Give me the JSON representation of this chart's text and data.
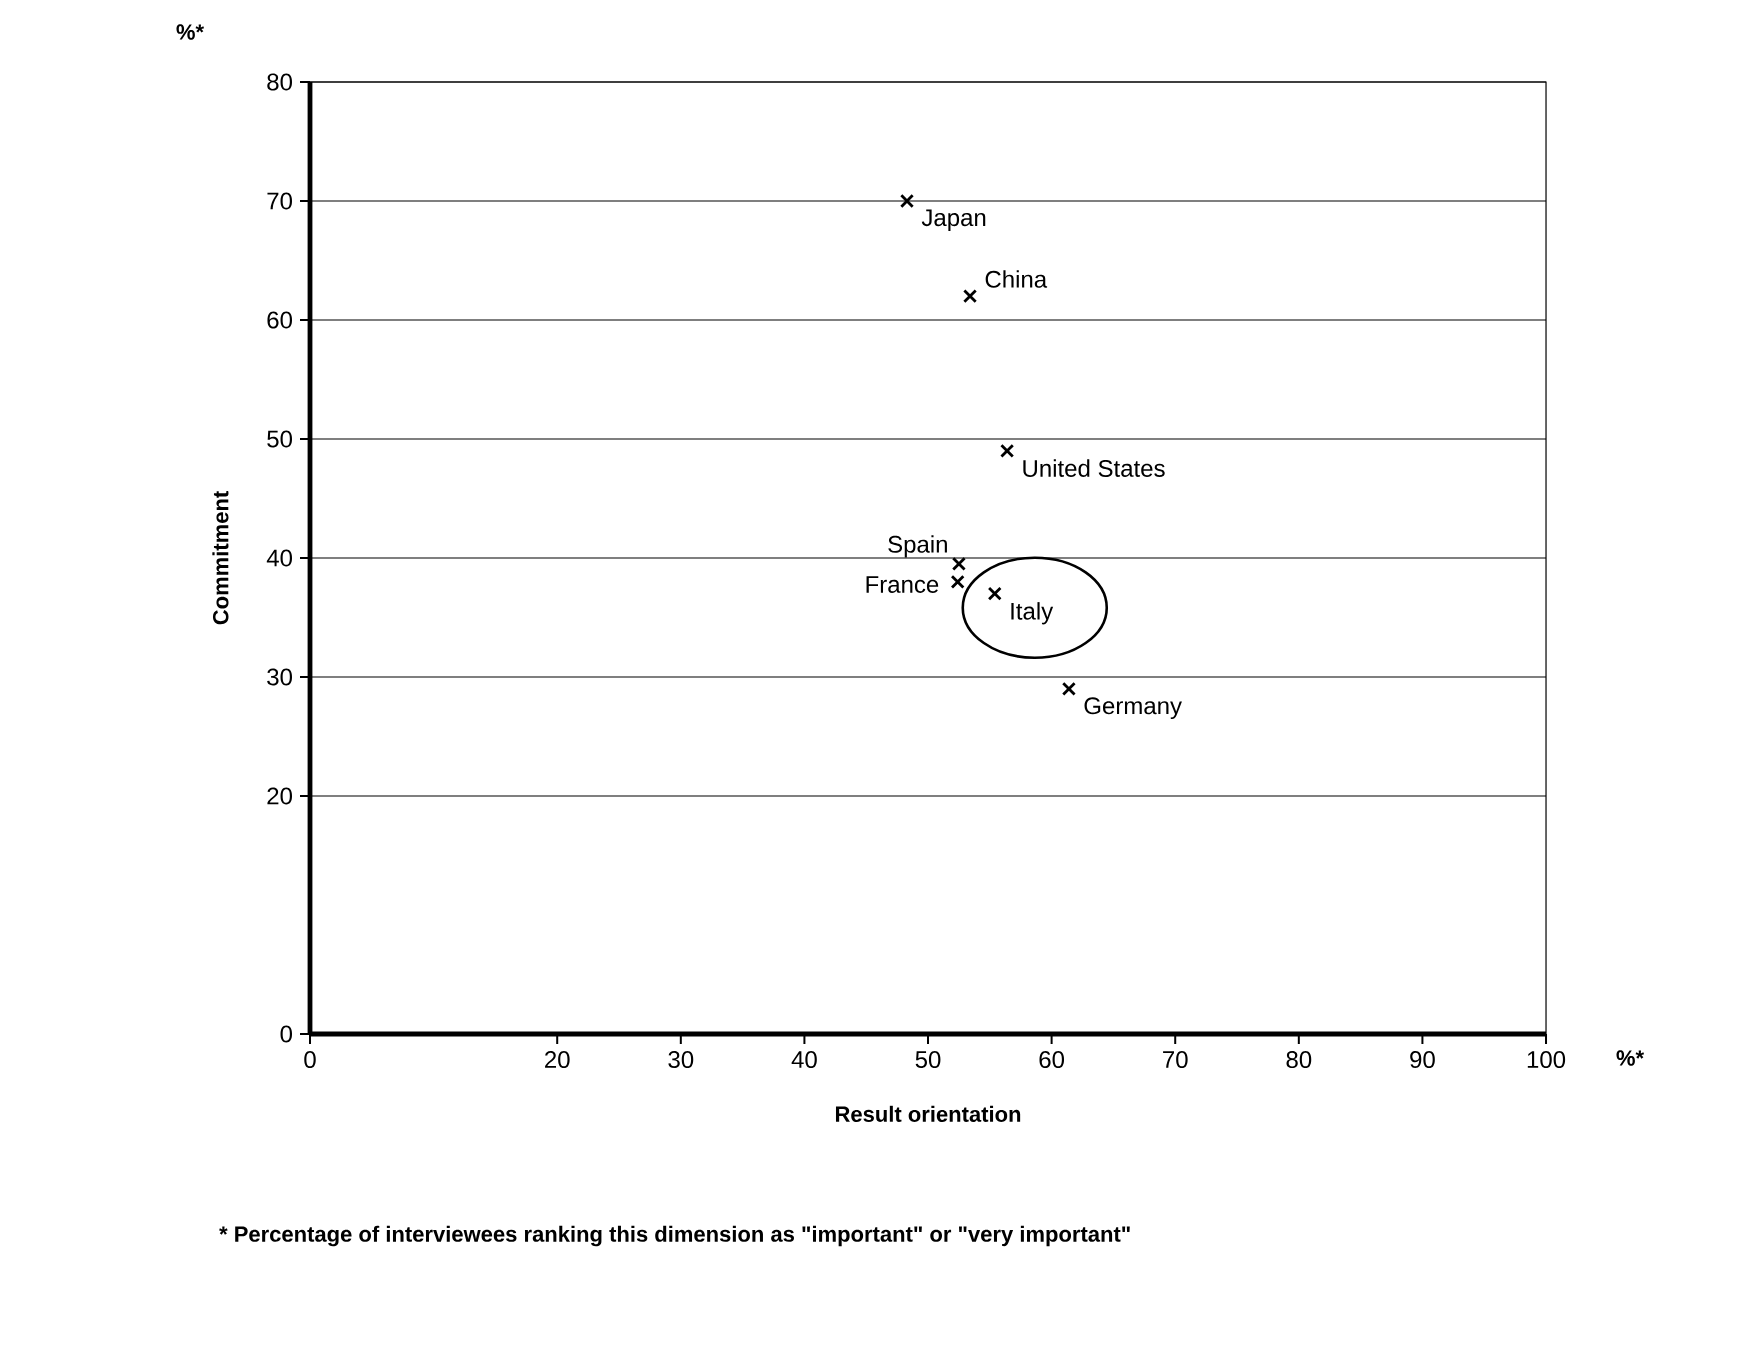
{
  "chart_data": {
    "type": "scatter",
    "xlabel": "Result orientation",
    "ylabel": "Commitment",
    "x": [
      48.3,
      53.4,
      56.4,
      52.5,
      52.4,
      55.4,
      61.4
    ],
    "values": [
      70,
      62,
      49,
      39.5,
      38,
      37,
      29
    ],
    "color": "#000000",
    "marker": "cross",
    "xlim": [
      0,
      100
    ],
    "ylim": [
      0,
      80
    ],
    "xticks": [
      0,
      20,
      30,
      40,
      50,
      60,
      70,
      80,
      90,
      100
    ],
    "yticks": [
      0,
      20,
      30,
      40,
      50,
      60,
      70,
      80
    ],
    "grid": "y",
    "annotations": [
      {
        "text": "Japan",
        "x": 48.3,
        "y": 70
      },
      {
        "text": "China",
        "x": 53.4,
        "y": 62
      },
      {
        "text": "United States",
        "x": 56.4,
        "y": 49
      },
      {
        "text": "Spain",
        "x": 52.5,
        "y": 39.5
      },
      {
        "text": "France",
        "x": 52.4,
        "y": 38
      },
      {
        "text": "Italy",
        "x": 55.4,
        "y": 37
      },
      {
        "text": "Germany",
        "x": 61.4,
        "y": 29
      },
      "%*",
      "%*",
      "*  Percentage of interviewees ranking this dimension as \"important\" or \"very important\""
    ]
  }
}
